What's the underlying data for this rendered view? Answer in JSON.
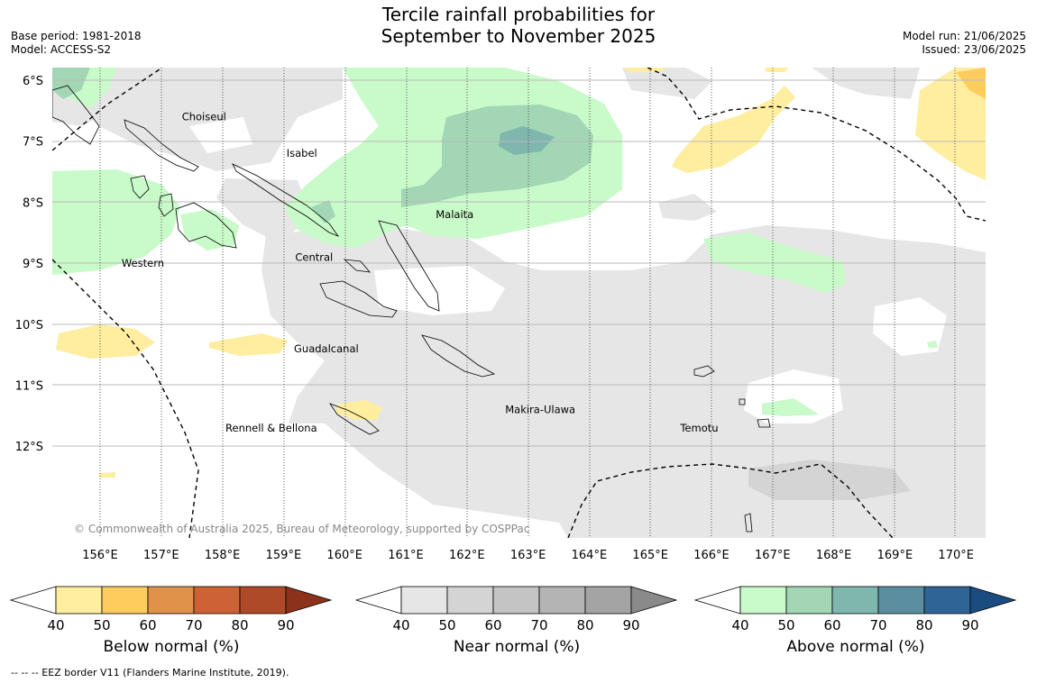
{
  "title": {
    "line1": "Tercile rainfall probabilities for",
    "line2": "September to November 2025"
  },
  "meta_left": {
    "base_period": "Base period: 1981-2018",
    "model": "Model: ACCESS-S2"
  },
  "meta_right": {
    "model_run": "Model run: 21/06/2025",
    "issued": "Issued: 23/06/2025"
  },
  "map": {
    "lat_labels": [
      "6°S",
      "7°S",
      "8°S",
      "9°S",
      "10°S",
      "11°S",
      "12°S"
    ],
    "lon_labels": [
      "156°E",
      "157°E",
      "158°E",
      "159°E",
      "160°E",
      "161°E",
      "162°E",
      "163°E",
      "164°E",
      "165°E",
      "166°E",
      "167°E",
      "168°E",
      "169°E",
      "170°E"
    ],
    "regions": [
      {
        "name": "Choiseul",
        "lon": 157.7,
        "lat": -6.6
      },
      {
        "name": "Isabel",
        "lon": 159.3,
        "lat": -7.2
      },
      {
        "name": "Malaita",
        "lon": 161.8,
        "lat": -8.2
      },
      {
        "name": "Western",
        "lon": 156.7,
        "lat": -9.0
      },
      {
        "name": "Central",
        "lon": 159.5,
        "lat": -8.9
      },
      {
        "name": "Guadalcanal",
        "lon": 159.7,
        "lat": -10.4
      },
      {
        "name": "Makira-Ulawa",
        "lon": 163.2,
        "lat": -11.4
      },
      {
        "name": "Rennell & Bellona",
        "lon": 158.8,
        "lat": -11.7
      },
      {
        "name": "Temotu",
        "lon": 165.8,
        "lat": -11.7
      }
    ],
    "copyright": "© Commonwealth of Australia 2025, Bureau of Meteorology, supported by COSPPac"
  },
  "colorbars": [
    {
      "title": "Below normal (%)",
      "ticks": [
        "40",
        "50",
        "60",
        "70",
        "80",
        "90"
      ],
      "colors": [
        "#ffeda0",
        "#fecc5c",
        "#e0924b",
        "#cd6335",
        "#ae4a27",
        "#8c321b"
      ]
    },
    {
      "title": "Near normal (%)",
      "ticks": [
        "40",
        "50",
        "60",
        "70",
        "80",
        "90"
      ],
      "colors": [
        "#e6e6e6",
        "#d4d4d4",
        "#c4c4c4",
        "#b4b4b4",
        "#a4a4a4",
        "#8a8a8a"
      ]
    },
    {
      "title": "Above normal (%)",
      "ticks": [
        "40",
        "50",
        "60",
        "70",
        "80",
        "90"
      ],
      "colors": [
        "#c9fac9",
        "#a2d6b4",
        "#7fb6ae",
        "#5b8f9f",
        "#2f6497",
        "#1a4c80"
      ]
    }
  ],
  "footnote": "--  --  -- EEZ border V11 (Flanders Marine Institute, 2019).",
  "colors": {
    "below_40": "#ffeda0",
    "below_50": "#fecc5c",
    "near_40": "#e6e6e6",
    "near_50": "#d4d4d4",
    "above_40": "#c9fac9",
    "above_50": "#a2d6b4",
    "above_60": "#7fb6ae"
  }
}
